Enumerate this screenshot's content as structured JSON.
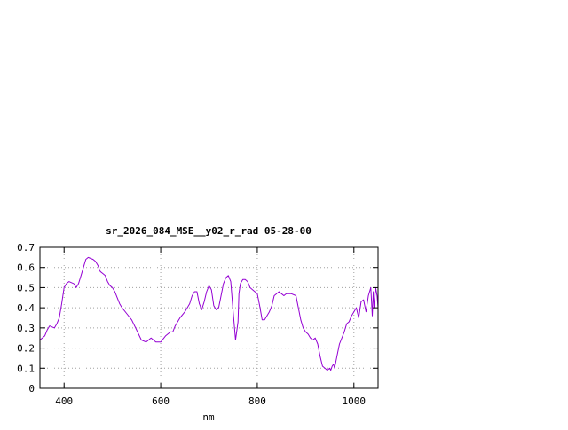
{
  "chart_data": {
    "type": "line",
    "title": "sr_2026_084_MSE__y02_r_rad 05-28-00",
    "xlabel": "nm",
    "ylabel": "",
    "xlim": [
      350,
      1050
    ],
    "ylim": [
      0,
      0.7
    ],
    "x_ticks": [
      400,
      600,
      800,
      1000
    ],
    "x_tick_labels": [
      "400",
      "600",
      "800",
      "1000"
    ],
    "y_ticks": [
      0,
      0.1,
      0.2,
      0.3,
      0.4,
      0.5,
      0.6,
      0.7
    ],
    "y_tick_labels": [
      "0",
      "0.1",
      "0.2",
      "0.3",
      "0.4",
      "0.5",
      "0.6",
      "0.7"
    ],
    "grid": true,
    "legend": "none",
    "series": [
      {
        "color": "#9400d3",
        "x": [
          350,
          360,
          365,
          370,
          380,
          385,
          390,
          395,
          400,
          405,
          410,
          420,
          425,
          430,
          435,
          440,
          445,
          450,
          460,
          465,
          470,
          475,
          480,
          485,
          490,
          495,
          500,
          505,
          510,
          515,
          520,
          530,
          540,
          550,
          560,
          570,
          580,
          590,
          595,
          600,
          610,
          620,
          625,
          630,
          640,
          650,
          660,
          665,
          670,
          675,
          680,
          685,
          690,
          695,
          700,
          705,
          710,
          715,
          720,
          725,
          730,
          735,
          740,
          745,
          750,
          755,
          760,
          762,
          765,
          770,
          775,
          780,
          785,
          790,
          795,
          800,
          805,
          810,
          815,
          820,
          825,
          830,
          835,
          840,
          845,
          850,
          855,
          860,
          870,
          880,
          885,
          890,
          895,
          900,
          905,
          910,
          915,
          920,
          925,
          930,
          935,
          940,
          945,
          950,
          952,
          955,
          958,
          960,
          965,
          970,
          975,
          980,
          985,
          990,
          995,
          1000,
          1005,
          1010,
          1015,
          1020,
          1025,
          1030,
          1035,
          1038,
          1040,
          1042,
          1045,
          1048,
          1050
        ],
        "y": [
          0.24,
          0.26,
          0.29,
          0.31,
          0.3,
          0.32,
          0.35,
          0.42,
          0.5,
          0.52,
          0.53,
          0.52,
          0.5,
          0.52,
          0.56,
          0.6,
          0.64,
          0.65,
          0.64,
          0.63,
          0.61,
          0.58,
          0.57,
          0.56,
          0.53,
          0.51,
          0.5,
          0.48,
          0.45,
          0.42,
          0.4,
          0.37,
          0.34,
          0.29,
          0.24,
          0.23,
          0.25,
          0.23,
          0.23,
          0.23,
          0.26,
          0.28,
          0.28,
          0.31,
          0.35,
          0.38,
          0.42,
          0.46,
          0.48,
          0.48,
          0.42,
          0.39,
          0.43,
          0.48,
          0.51,
          0.49,
          0.41,
          0.39,
          0.4,
          0.46,
          0.52,
          0.55,
          0.56,
          0.53,
          0.38,
          0.24,
          0.33,
          0.47,
          0.52,
          0.54,
          0.54,
          0.53,
          0.5,
          0.49,
          0.48,
          0.47,
          0.41,
          0.34,
          0.34,
          0.36,
          0.38,
          0.41,
          0.46,
          0.47,
          0.48,
          0.47,
          0.46,
          0.47,
          0.47,
          0.46,
          0.4,
          0.34,
          0.3,
          0.28,
          0.27,
          0.25,
          0.24,
          0.25,
          0.22,
          0.16,
          0.11,
          0.1,
          0.09,
          0.1,
          0.09,
          0.11,
          0.12,
          0.1,
          0.16,
          0.22,
          0.25,
          0.28,
          0.32,
          0.33,
          0.36,
          0.38,
          0.4,
          0.35,
          0.43,
          0.44,
          0.38,
          0.46,
          0.5,
          0.36,
          0.48,
          0.4,
          0.5,
          0.46,
          0.4
        ]
      }
    ]
  }
}
